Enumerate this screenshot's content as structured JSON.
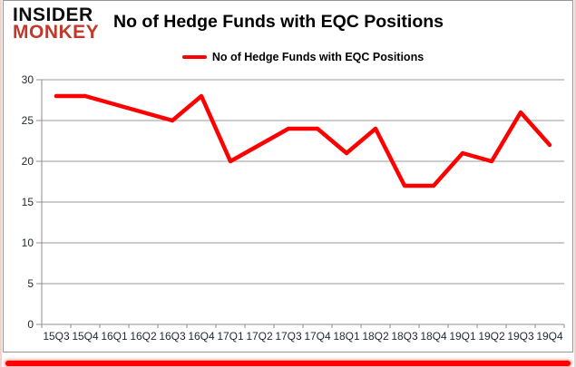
{
  "logo": {
    "line1": "INSIDER",
    "line2": "MONKEY",
    "monkey_color": "#c0392b"
  },
  "header": {
    "title": "No of Hedge Funds with EQC Positions"
  },
  "legend": {
    "label": "No of Hedge Funds with EQC Positions"
  },
  "chart_data": {
    "type": "line",
    "title": "No of Hedge Funds with EQC Positions",
    "series_name": "No of Hedge Funds with EQC Positions",
    "categories": [
      "15Q3",
      "15Q4",
      "16Q1",
      "16Q2",
      "16Q3",
      "16Q4",
      "17Q1",
      "17Q2",
      "17Q3",
      "17Q4",
      "18Q1",
      "18Q2",
      "18Q3",
      "18Q4",
      "19Q1",
      "19Q2",
      "19Q3",
      "19Q4"
    ],
    "values": [
      28,
      28,
      27,
      26,
      25,
      28,
      20,
      22,
      24,
      24,
      21,
      24,
      17,
      17,
      21,
      20,
      26,
      22
    ],
    "xlabel": "",
    "ylabel": "",
    "ylim": [
      0,
      30
    ],
    "ytick_step": 5,
    "yticks": [
      0,
      5,
      10,
      15,
      20,
      25,
      30
    ],
    "grid": true,
    "legend_position": "top",
    "line_color": "#ff0000",
    "grid_color": "#9a9a9a",
    "accent_bar_color": "#ff0000"
  }
}
